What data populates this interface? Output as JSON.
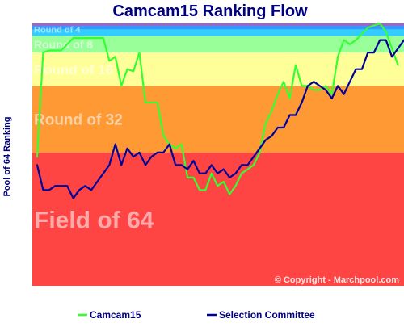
{
  "chart_data": {
    "type": "line",
    "title": "Camcam15 Ranking Flow",
    "ylabel": "Pool of 64 Ranking",
    "xlabel": "",
    "ylim": [
      64,
      1
    ],
    "grid": false,
    "legend_position": "bottom",
    "bands": [
      {
        "label": "Round of 4",
        "from": 1,
        "to": 4,
        "color": "#33ccff"
      },
      {
        "label": "Round of 8",
        "from": 4,
        "to": 8,
        "color": "#99ff99"
      },
      {
        "label": "Round of 16",
        "from": 8,
        "to": 16,
        "color": "#ffff99"
      },
      {
        "label": "Round of 32",
        "from": 16,
        "to": 32,
        "color": "#ff9933"
      },
      {
        "label": "Field of 64",
        "from": 32,
        "to": 64,
        "color": "#ff4444"
      }
    ],
    "top_stripes": [
      {
        "from": 1,
        "to": 1.6,
        "color": "#9966cc"
      },
      {
        "from": 1.6,
        "to": 2.4,
        "color": "#3399ff"
      }
    ],
    "series": [
      {
        "name": "Camcam15",
        "color": "#33ff33",
        "values": [
          33,
          8,
          7.5,
          7.5,
          7.5,
          6,
          4.5,
          4.5,
          4.5,
          4.5,
          4.5,
          4.5,
          10,
          9,
          16,
          12,
          12.5,
          8,
          20,
          20,
          20,
          28,
          30,
          31,
          30,
          38,
          38,
          41,
          41,
          37,
          40,
          39,
          42,
          40,
          37,
          36,
          35,
          32,
          25,
          22,
          18,
          15,
          19,
          11,
          16,
          16,
          17,
          17,
          16,
          18,
          9,
          5,
          6,
          5,
          3.5,
          2,
          1.5,
          1,
          3,
          7,
          11
        ]
      },
      {
        "name": "Selection Committee",
        "color": "#000099",
        "values": [
          35,
          41,
          41,
          40,
          40,
          40,
          43,
          41,
          40,
          41,
          39,
          37,
          35,
          30,
          35,
          31,
          33,
          32,
          35,
          33,
          32,
          32,
          30,
          35,
          35,
          36,
          34,
          37,
          37,
          35,
          37,
          36,
          38,
          37,
          35,
          35,
          33,
          31,
          29,
          28,
          26,
          26,
          23,
          23,
          20,
          16,
          15,
          16,
          17,
          19,
          16,
          18,
          15,
          12,
          12,
          8,
          8,
          5,
          5,
          9,
          7,
          5
        ]
      }
    ],
    "watermark": "© Copyright - Marchpool.com"
  }
}
